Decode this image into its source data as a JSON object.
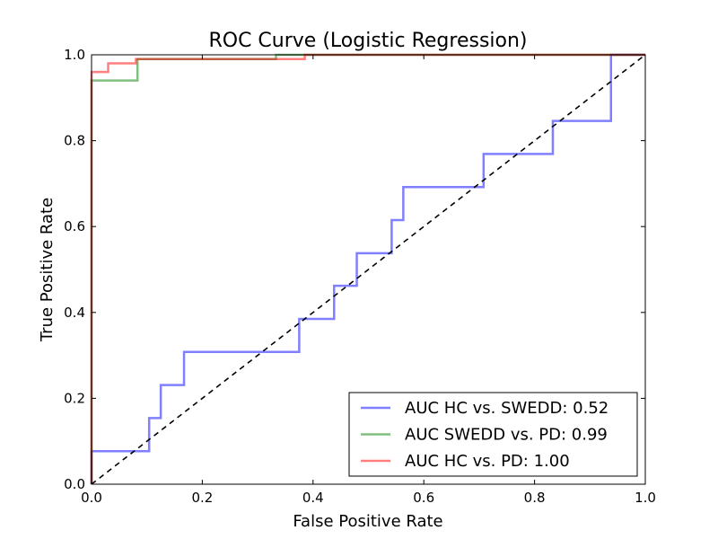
{
  "chart_data": {
    "type": "line",
    "title": "ROC Curve (Logistic Regression)",
    "xlabel": "False Positive Rate",
    "ylabel": "True Positive Rate",
    "xlim": [
      0,
      1
    ],
    "ylim": [
      0,
      1
    ],
    "xticks": [
      0.0,
      0.2,
      0.4,
      0.6,
      0.8,
      1.0
    ],
    "yticks": [
      0.0,
      0.2,
      0.4,
      0.6,
      0.8,
      1.0
    ],
    "xtick_labels": [
      "0.0",
      "0.2",
      "0.4",
      "0.6",
      "0.8",
      "1.0"
    ],
    "ytick_labels": [
      "0.0",
      "0.2",
      "0.4",
      "0.6",
      "0.8",
      "1.0"
    ],
    "grid": false,
    "legend_position": "lower-right",
    "series": [
      {
        "name": "AUC HC vs. SWEDD: 0.52",
        "color": "#0000ff",
        "x": [
          0,
          0,
          0.104,
          0.104,
          0.125,
          0.125,
          0.167,
          0.167,
          0.375,
          0.375,
          0.438,
          0.438,
          0.479,
          0.479,
          0.542,
          0.542,
          0.563,
          0.563,
          0.708,
          0.708,
          0.833,
          0.833,
          0.938,
          0.938,
          1.0
        ],
        "y": [
          0,
          0.077,
          0.077,
          0.154,
          0.154,
          0.231,
          0.231,
          0.308,
          0.308,
          0.385,
          0.385,
          0.462,
          0.462,
          0.538,
          0.538,
          0.615,
          0.615,
          0.692,
          0.692,
          0.769,
          0.769,
          0.846,
          0.846,
          1.0,
          1.0
        ]
      },
      {
        "name": "AUC SWEDD vs. PD: 0.99",
        "color": "#008000",
        "x": [
          0,
          0,
          0.083,
          0.083,
          0.333,
          0.333,
          1.0
        ],
        "y": [
          0,
          0.94,
          0.94,
          0.99,
          0.99,
          1.0,
          1.0
        ]
      },
      {
        "name": "AUC HC vs. PD: 1.00",
        "color": "#ff0000",
        "x": [
          0,
          0,
          0.03,
          0.03,
          0.08,
          0.08,
          0.385,
          0.385,
          1.0
        ],
        "y": [
          0,
          0.96,
          0.96,
          0.98,
          0.98,
          0.99,
          0.99,
          1.0,
          1.0
        ]
      }
    ],
    "reference_line": {
      "x": [
        0,
        1
      ],
      "y": [
        0,
        1
      ],
      "style": "dashed",
      "color": "#000000"
    }
  }
}
